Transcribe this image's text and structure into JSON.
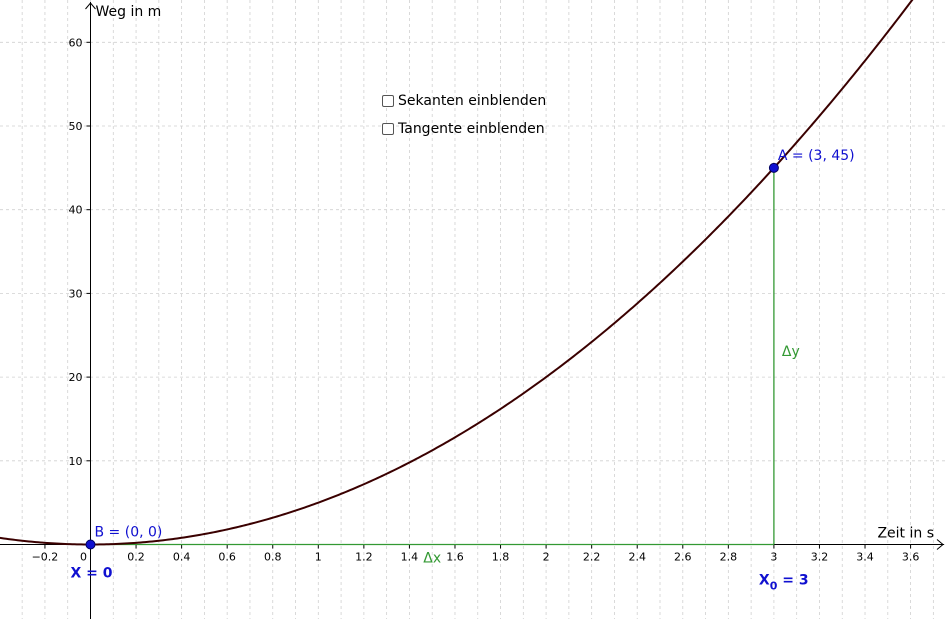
{
  "controls": {
    "sekanten_label": "Sekanten einblenden",
    "tangente_label": "Tangente einblenden",
    "sekanten_checked": false,
    "tangente_checked": false
  },
  "colors": {
    "curve": "#3a0000",
    "point": "#1010d0",
    "label_blue": "#1010d0",
    "helper_green": "#339933",
    "grid": "#d0d0d0",
    "axis": "#000000"
  },
  "chart_data": {
    "type": "line",
    "function": "5*x^2",
    "xlabel": "Zeit in s",
    "ylabel": "Weg in m",
    "xlim": [
      -0.4,
      3.76
    ],
    "ylim": [
      -8.8,
      64.5
    ],
    "grid": true,
    "x_ticks": [
      -0.2,
      0,
      0.2,
      0.4,
      0.6,
      0.8,
      1,
      1.2,
      1.4,
      1.6,
      1.8,
      2,
      2.2,
      2.4,
      2.6,
      2.8,
      3,
      3.2,
      3.4,
      3.6
    ],
    "x_tick_labels": [
      "−0.2",
      "0",
      "0.2",
      "0.4",
      "0.6",
      "0.8",
      "1",
      "1.2",
      "1.4",
      "1.6",
      "1.8",
      "2",
      "2.2",
      "2.4",
      "2.6",
      "2.8",
      "3",
      "3.2",
      "3.4",
      "3.6"
    ],
    "y_ticks": [
      10,
      20,
      30,
      40,
      50,
      60
    ],
    "y_tick_labels": [
      "10",
      "20",
      "30",
      "40",
      "50",
      "60"
    ],
    "points": [
      {
        "name": "A",
        "x": 3,
        "y": 45,
        "label": "A = (3, 45)"
      },
      {
        "name": "B",
        "x": 0,
        "y": 0,
        "label": "B = (0, 0)"
      }
    ],
    "annotations": {
      "delta_x": "Δx",
      "delta_y": "Δy",
      "x0_label_main": "X",
      "x0_label_sub": "0",
      "x0_label_rest": " = 3",
      "x_label": "X = 0"
    }
  }
}
